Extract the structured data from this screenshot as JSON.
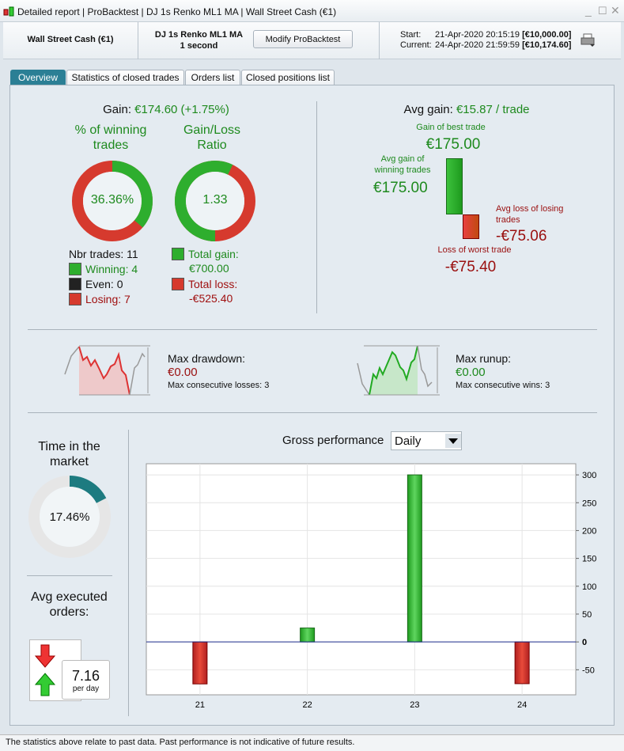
{
  "window": {
    "title_parts": [
      "Detailed report",
      "ProBacktest",
      "DJ 1s Renko ML1 MA",
      "Wall Street Cash (€1)"
    ]
  },
  "header": {
    "instrument": "Wall Street Cash (€1)",
    "strategy": "DJ 1s Renko ML1 MA",
    "timeframe": "1 second",
    "modify_button": "Modify ProBacktest",
    "start_label": "Start:",
    "start_date": "21-Apr-2020 20:15:19",
    "start_value": "[€10,000.00]",
    "current_label": "Current:",
    "current_date": "24-Apr-2020 21:59:59",
    "current_value": "[€10,174.60]"
  },
  "tabs": [
    {
      "label": "Overview",
      "active": true
    },
    {
      "label": "Statistics of closed trades"
    },
    {
      "label": "Orders list"
    },
    {
      "label": "Closed positions list"
    }
  ],
  "gain": {
    "label": "Gain:",
    "value": "€174.60 (+1.75%)"
  },
  "winning": {
    "title": "% of winning trades",
    "value": "36.36%",
    "percent": 36.36
  },
  "ratio": {
    "title": "Gain/Loss Ratio",
    "value": "1.33",
    "green_fraction": 0.571
  },
  "counts": {
    "nbr": "Nbr trades: 11",
    "winning": "Winning: 4",
    "even": "Even: 0",
    "losing": "Losing: 7"
  },
  "totals": {
    "gain_label": "Total gain:",
    "gain": "€700.00",
    "loss_label": "Total loss:",
    "loss": "-€525.40"
  },
  "avg": {
    "label": "Avg gain:",
    "value": "€15.87 / trade",
    "best_label": "Gain of best trade",
    "best": "€175.00",
    "avg_win_label": "Avg gain of winning trades",
    "avg_win": "€175.00",
    "avg_loss_label": "Avg loss of losing trades",
    "avg_loss": "-€75.06",
    "worst_label": "Loss of worst trade",
    "worst": "-€75.40"
  },
  "drawdown": {
    "label": "Max drawdown:",
    "value": "€0.00",
    "consec": "Max consecutive losses: 3"
  },
  "runup": {
    "label": "Max runup:",
    "value": "€0.00",
    "consec": "Max consecutive wins: 3"
  },
  "market": {
    "title": "Time in the market",
    "value": "17.46%",
    "percent": 17.46
  },
  "orders": {
    "title": "Avg executed orders:",
    "value": "7.16",
    "unit": "per day"
  },
  "perf": {
    "title": "Gross performance",
    "period": "Daily"
  },
  "chart_data": {
    "type": "bar",
    "categories": [
      "21",
      "22",
      "23",
      "24"
    ],
    "values": [
      -75.4,
      25,
      300,
      -75
    ],
    "yticks": [
      -50,
      0,
      50,
      100,
      150,
      200,
      250,
      300
    ],
    "ylim": [
      -95,
      320
    ],
    "grid": true,
    "colors": {
      "positive": "#2bb52b",
      "negative": "#d0302a"
    }
  },
  "footer": "The statistics above relate to past data. Past performance is not indicative of future results.",
  "colors": {
    "accent": "#2b7f95",
    "green": "#1e8a1e",
    "red": "#a01010"
  }
}
